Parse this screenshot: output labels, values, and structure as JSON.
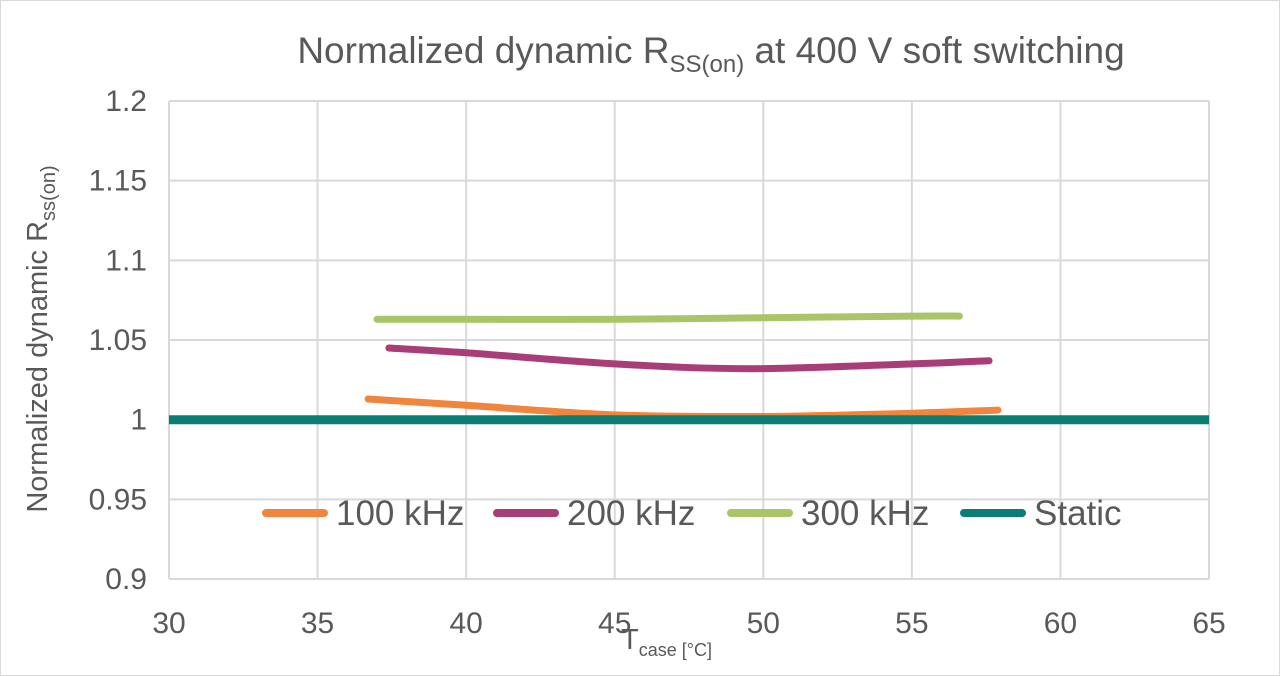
{
  "chart_data": {
    "type": "line",
    "title": {
      "main": "Normalized dynamic R",
      "sub": "SS(on)",
      "rest": " at 400 V soft switching"
    },
    "xlabel": {
      "main": "T",
      "sub": "case [°C]"
    },
    "ylabel": {
      "main": "Normalized dynamic R",
      "sub": "ss(on)"
    },
    "xlim": [
      30,
      65
    ],
    "ylim": [
      0.9,
      1.2
    ],
    "x_ticks": [
      30,
      35,
      40,
      45,
      50,
      55,
      60,
      65
    ],
    "y_ticks": [
      0.9,
      0.95,
      1,
      1.05,
      1.1,
      1.15,
      1.2
    ],
    "y_tick_labels": [
      "0.9",
      "0.95",
      "1",
      "1.05",
      "1.1",
      "1.15",
      "1.2"
    ],
    "grid": true,
    "legend_position": "inside-bottom",
    "series": [
      {
        "name": "100 kHz",
        "color": "#F0853D",
        "x": [
          36.7,
          40,
          45,
          50,
          55,
          57.9
        ],
        "y": [
          1.013,
          1.009,
          1.003,
          1.002,
          1.004,
          1.006
        ]
      },
      {
        "name": "200 kHz",
        "color": "#A93D78",
        "x": [
          37.4,
          40,
          45,
          49.6,
          55,
          57.6
        ],
        "y": [
          1.045,
          1.042,
          1.035,
          1.032,
          1.035,
          1.037
        ]
      },
      {
        "name": "300 kHz",
        "color": "#A8C567",
        "x": [
          37,
          40,
          45,
          50,
          55,
          56.6
        ],
        "y": [
          1.063,
          1.063,
          1.063,
          1.064,
          1.065,
          1.065
        ]
      },
      {
        "name": "Static",
        "color": "#0A7E74",
        "x": [
          30,
          65
        ],
        "y": [
          1,
          1
        ]
      }
    ]
  }
}
